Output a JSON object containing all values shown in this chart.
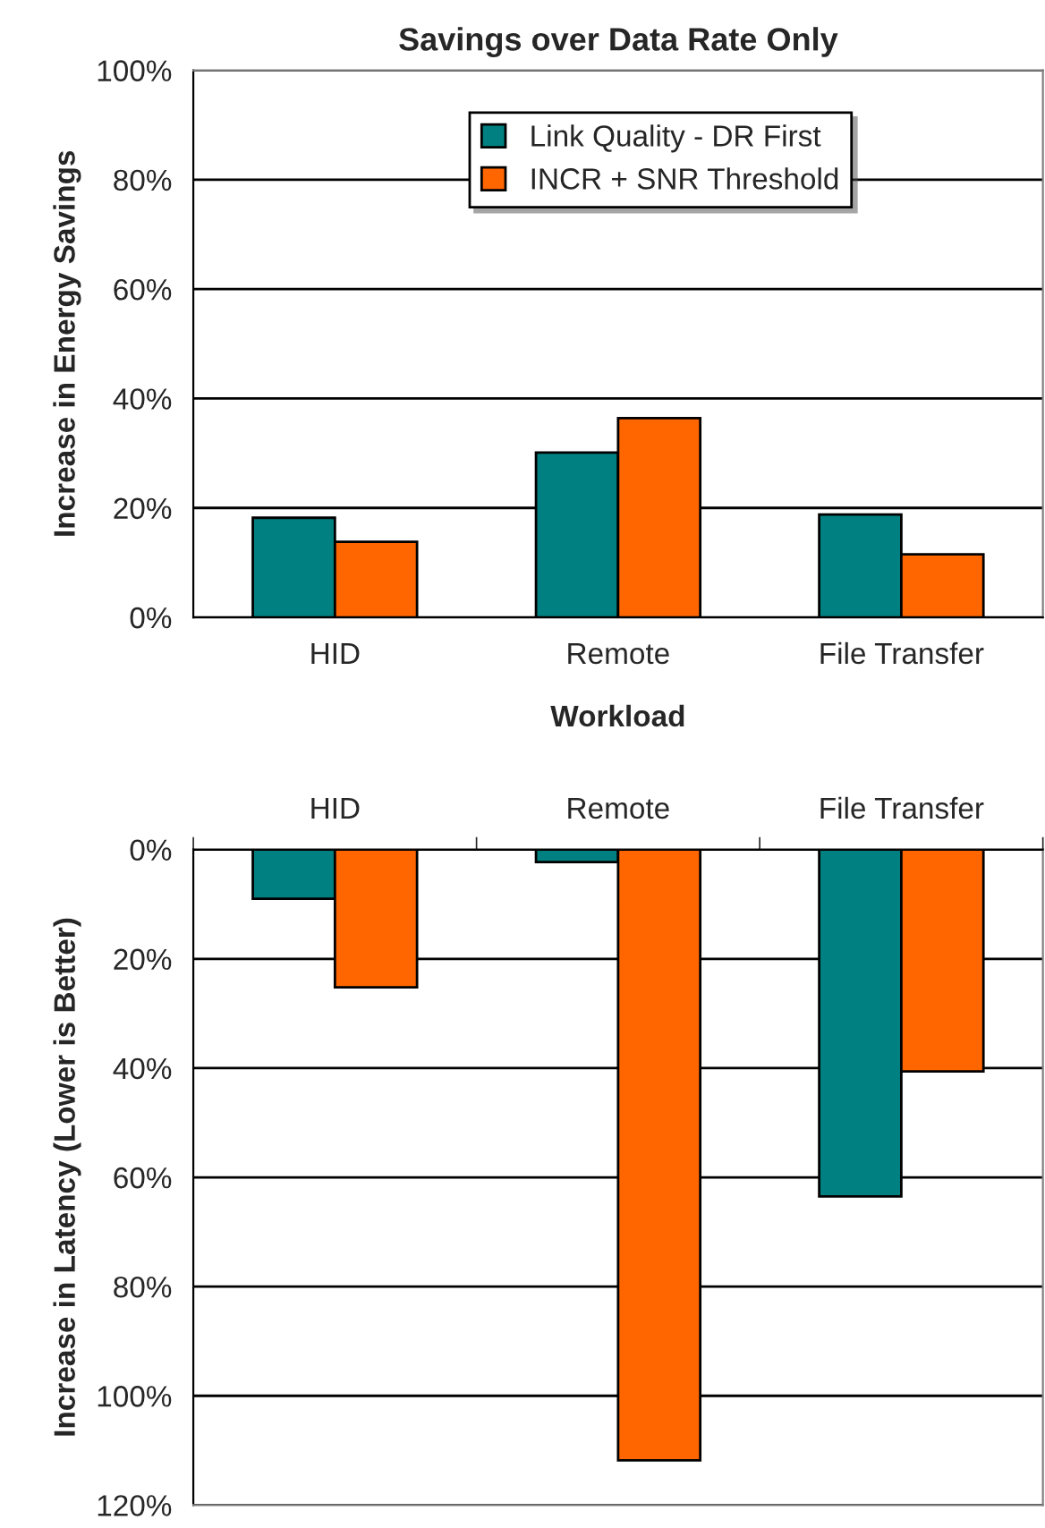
{
  "chart_data": [
    {
      "type": "bar",
      "title": "Savings over Data Rate Only",
      "xlabel": "Workload",
      "ylabel": "Increase in Energy Savings",
      "categories": [
        "HID",
        "Remote",
        "File Transfer"
      ],
      "series": [
        {
          "name": "Link Quality - DR First",
          "color": "#008080",
          "values": [
            18.2,
            30.1,
            18.8
          ]
        },
        {
          "name": "INCR + SNR Threshold",
          "color": "#ff6600",
          "values": [
            13.8,
            36.4,
            11.5
          ]
        }
      ],
      "ylim": [
        0,
        100
      ],
      "yticks": [
        {
          "value": 0,
          "label": "0%"
        },
        {
          "value": 20,
          "label": "20%"
        },
        {
          "value": 40,
          "label": "40%"
        },
        {
          "value": 60,
          "label": "60%"
        },
        {
          "value": 80,
          "label": "80%"
        },
        {
          "value": 100,
          "label": "100%"
        }
      ],
      "grid": "y",
      "legend": "top"
    },
    {
      "type": "bar",
      "ylabel": "Increase in Latency (Lower is Better)",
      "categories": [
        "HID",
        "Remote",
        "File Transfer"
      ],
      "series": [
        {
          "color": "#008080",
          "values": [
            9.0,
            2.3,
            63.5
          ]
        },
        {
          "color": "#ff6600",
          "values": [
            25.2,
            111.8,
            40.6
          ]
        }
      ],
      "ylim": [
        120,
        0
      ],
      "yticks": [
        {
          "value": 0,
          "label": "0%"
        },
        {
          "value": 20,
          "label": "20%"
        },
        {
          "value": 40,
          "label": "40%"
        },
        {
          "value": 60,
          "label": "60%"
        },
        {
          "value": 80,
          "label": "80%"
        },
        {
          "value": 100,
          "label": "100%"
        },
        {
          "value": 120,
          "label": "120%"
        }
      ],
      "grid": "y"
    }
  ]
}
